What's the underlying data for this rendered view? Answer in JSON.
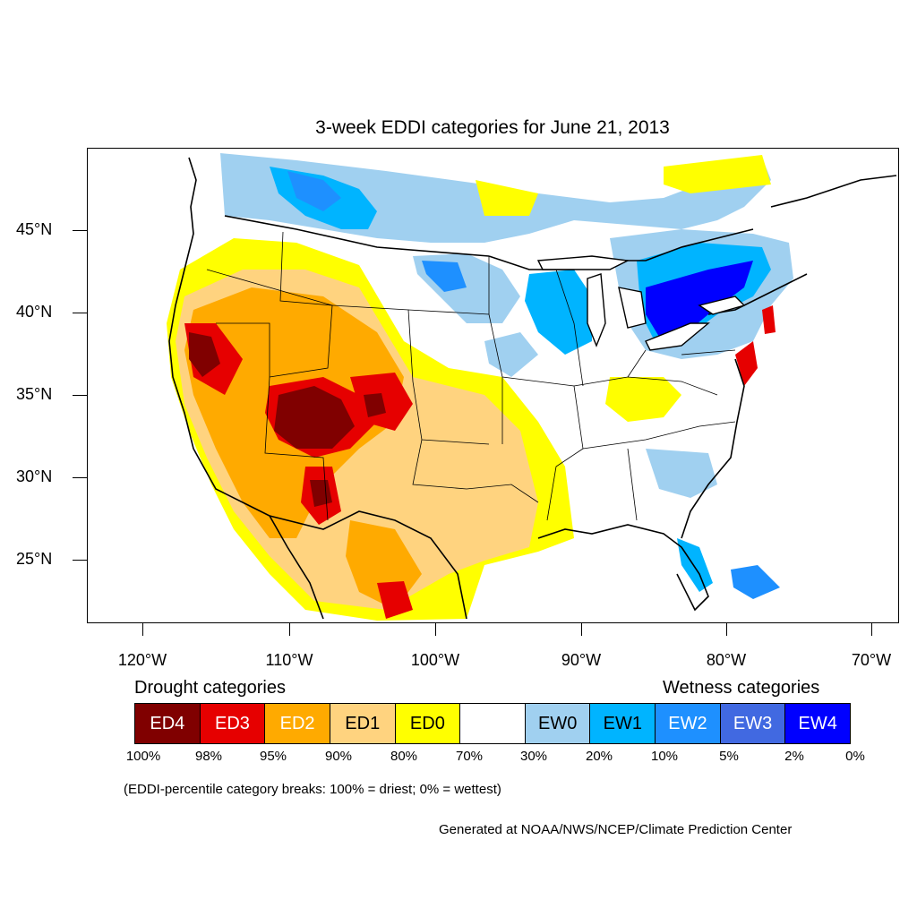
{
  "title": "3-week EDDI categories for June 21, 2013",
  "map": {
    "lat_labels": [
      "45°N",
      "40°N",
      "35°N",
      "30°N",
      "25°N"
    ],
    "lon_labels": [
      "120°W",
      "110°W",
      "100°W",
      "90°W",
      "80°W",
      "70°W"
    ],
    "colors": {
      "ED4": "#800000",
      "ED3": "#e60000",
      "ED2": "#ffaa00",
      "ED1": "#ffd37f",
      "ED0": "#ffff00",
      "neutral": "#ffffff",
      "EW0": "#a0d0f0",
      "EW1": "#00b4ff",
      "EW2": "#1e90ff",
      "EW3": "#4169e1",
      "EW4": "#0000ff"
    }
  },
  "legend": {
    "drought_heading": "Drought categories",
    "wetness_heading": "Wetness categories",
    "boxes": [
      {
        "label": "ED4",
        "bg": "#800000",
        "fg": "#ffffff"
      },
      {
        "label": "ED3",
        "bg": "#e60000",
        "fg": "#ffffff"
      },
      {
        "label": "ED2",
        "bg": "#ffaa00",
        "fg": "#ffffff"
      },
      {
        "label": "ED1",
        "bg": "#ffd37f",
        "fg": "#000000"
      },
      {
        "label": "ED0",
        "bg": "#ffff00",
        "fg": "#000000"
      },
      {
        "label": "",
        "bg": "#ffffff",
        "fg": "#000000"
      },
      {
        "label": "EW0",
        "bg": "#a0d0f0",
        "fg": "#000000"
      },
      {
        "label": "EW1",
        "bg": "#00b4ff",
        "fg": "#000000"
      },
      {
        "label": "EW2",
        "bg": "#1e90ff",
        "fg": "#ffffff"
      },
      {
        "label": "EW3",
        "bg": "#4169e1",
        "fg": "#ffffff"
      },
      {
        "label": "EW4",
        "bg": "#0000ff",
        "fg": "#ffffff"
      }
    ],
    "percent_labels": [
      "100%",
      "98%",
      "95%",
      "90%",
      "80%",
      "70%",
      "30%",
      "20%",
      "10%",
      "5%",
      "2%",
      "0%"
    ],
    "note": "(EDDI-percentile category breaks: 100% = driest; 0% = wettest)"
  },
  "credit": "Generated at NOAA/NWS/NCEP/Climate Prediction Center"
}
